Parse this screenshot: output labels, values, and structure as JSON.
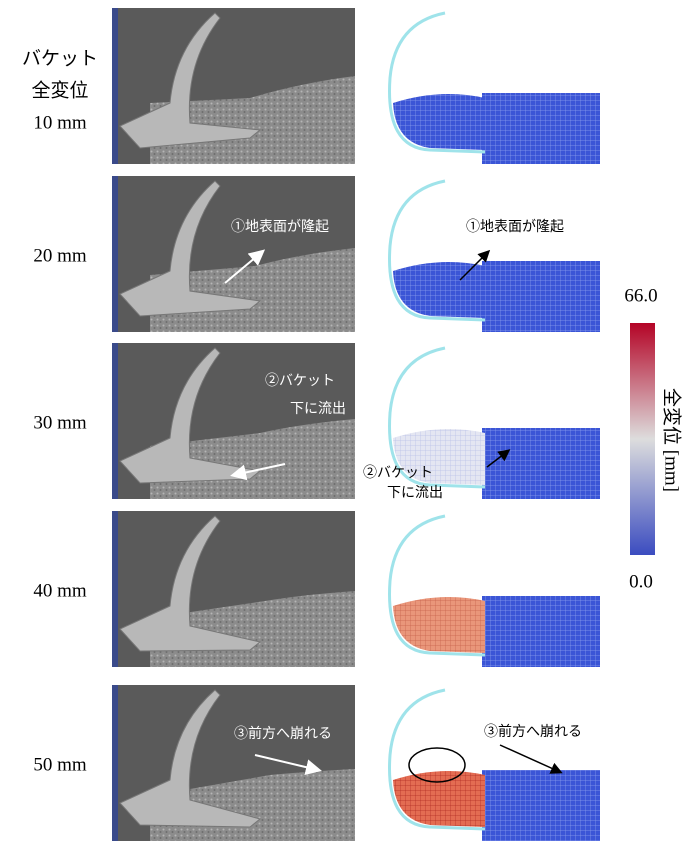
{
  "header": {
    "lines": [
      "バケット",
      "全変位"
    ]
  },
  "rows": [
    {
      "label": "10 mm"
    },
    {
      "label": "20 mm",
      "photo_annotation": [
        "①地表面が隆起"
      ],
      "sim_annotation": [
        "①地表面が隆起"
      ]
    },
    {
      "label": "30 mm",
      "photo_annotation": [
        "②バケット",
        "下に流出"
      ],
      "sim_annotation": [
        "②バケット",
        "下に流出"
      ]
    },
    {
      "label": "40 mm"
    },
    {
      "label": "50 mm",
      "photo_annotation": [
        "③前方へ崩れる"
      ],
      "sim_annotation": [
        "③前方へ崩れる"
      ]
    }
  ],
  "colorbar": {
    "max": "66.0",
    "min": "0.0",
    "label": "全変位 [mm]"
  }
}
